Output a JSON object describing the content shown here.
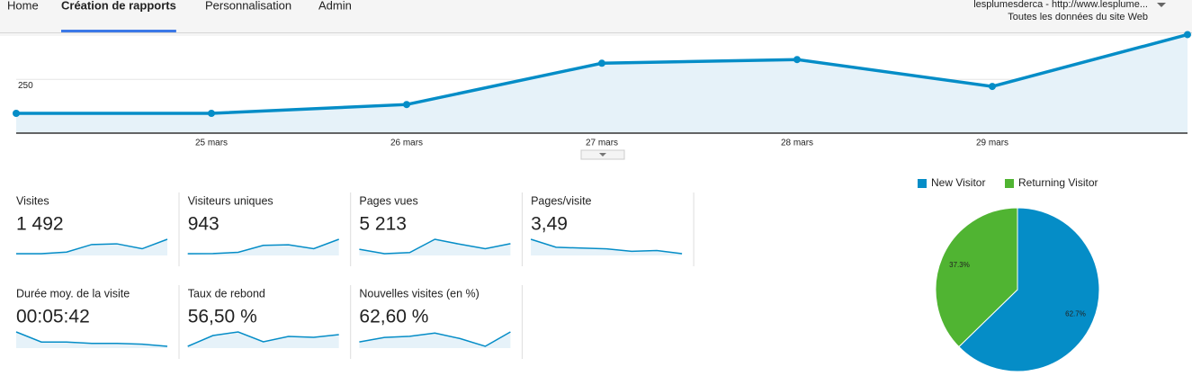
{
  "nav": {
    "tabs": [
      "Home",
      "Création de rapports",
      "Personnalisation",
      "Admin"
    ],
    "active": 1
  },
  "account": {
    "name": "lesplumesderca - http://www.lesplume...",
    "view": "Toutes les données du site Web"
  },
  "chart_data": [
    {
      "type": "line",
      "categories": [
        null,
        "25 mars",
        "26 mars",
        "27 mars",
        "28 mars",
        "29 mars",
        null
      ],
      "values": [
        92,
        92,
        133,
        325,
        342,
        217,
        458
      ],
      "color": "#058dc7",
      "ylim": [
        0,
        460
      ],
      "yticks": [
        250
      ],
      "grid": true
    },
    {
      "type": "pie",
      "categories": [
        "New Visitor",
        "Returning Visitor"
      ],
      "values": [
        62.7,
        37.3
      ],
      "value_labels": [
        "62.7%",
        "37.3%"
      ],
      "colors": [
        "#058dc7",
        "#50b432"
      ]
    }
  ],
  "metrics": [
    {
      "label": "Visites",
      "value": "1 492",
      "sparkline": [
        92,
        92,
        133,
        325,
        342,
        217,
        458
      ]
    },
    {
      "label": "Visiteurs uniques",
      "value": "943",
      "sparkline": [
        70,
        72,
        95,
        220,
        230,
        160,
        330
      ]
    },
    {
      "label": "Pages vues",
      "value": "5 213",
      "sparkline": [
        380,
        300,
        320,
        560,
        470,
        390,
        480
      ]
    },
    {
      "label": "Pages/visite",
      "value": "3,49",
      "sparkline": [
        4.1,
        3.1,
        3.0,
        2.9,
        2.6,
        2.7,
        2.3
      ]
    },
    {
      "label": "Durée moy. de la visite",
      "value": "00:05:42",
      "sparkline": [
        390,
        250,
        250,
        230,
        230,
        220,
        190
      ]
    },
    {
      "label": "Taux de rebond",
      "value": "56,50 %",
      "sparkline": [
        50,
        62,
        66,
        55,
        61,
        60,
        63
      ]
    },
    {
      "label": "Nouvelles visites (en %)",
      "value": "62,60 %",
      "sparkline": [
        62,
        66,
        67,
        70,
        65,
        58,
        71
      ]
    }
  ]
}
